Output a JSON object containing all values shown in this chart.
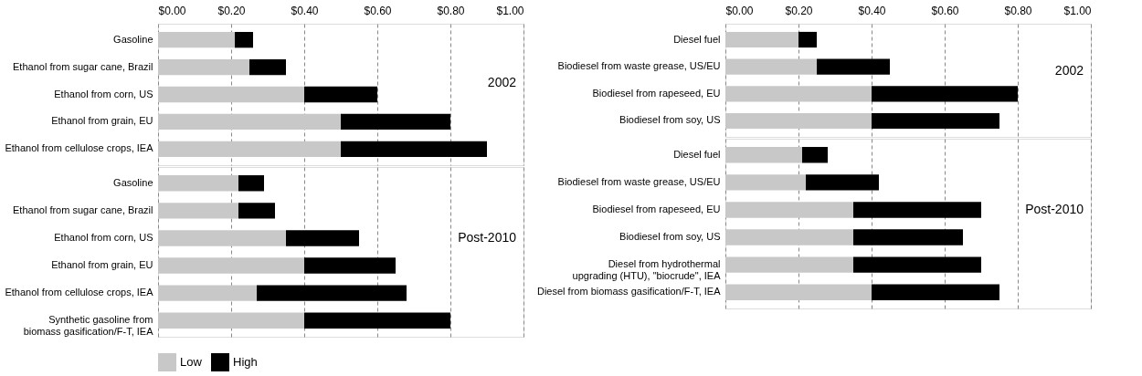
{
  "chart_data": [
    {
      "type": "bar",
      "orientation": "horizontal",
      "stacked": true,
      "grid": "x",
      "legend": false,
      "annotations": [
        "2002"
      ],
      "categories": [
        "Gasoline",
        "Ethanol from sugar cane, Brazil",
        "Ethanol from corn, US",
        "Ethanol from grain, EU",
        "Ethanol from cellulose crops, IEA"
      ],
      "xlim": [
        0,
        1
      ],
      "xticks": [
        {
          "value": 0,
          "label": "$0.00"
        },
        {
          "value": 0.2,
          "label": "$0.20"
        },
        {
          "value": 0.4,
          "label": "$0.40"
        },
        {
          "value": 0.6,
          "label": "$0.60"
        },
        {
          "value": 0.8,
          "label": "$0.80"
        },
        {
          "value": 1,
          "label": "$1.00"
        }
      ],
      "series": [
        {
          "color": "#c8c8c8",
          "values": [
            0.21,
            0.25,
            0.4,
            0.5,
            0.5
          ]
        },
        {
          "color": "#000000",
          "values": [
            0.05,
            0.1,
            0.2,
            0.3,
            0.4
          ]
        }
      ]
    },
    {
      "type": "bar",
      "orientation": "horizontal",
      "stacked": true,
      "grid": "x",
      "legend": "bottom",
      "tick_labels": "y",
      "annotations": [
        "Post-2010"
      ],
      "categories": [
        "Gasoline",
        "Ethanol from sugar cane, Brazil",
        "Ethanol from corn, US",
        "Ethanol from grain, EU",
        "Ethanol from cellulose crops, IEA",
        "Synthetic gasoline from\nbiomass gasification/F-T, IEA"
      ],
      "xlim": [
        0,
        1
      ],
      "xticks": [
        {
          "value": 0,
          "label": null
        },
        {
          "value": 0.2,
          "label": null
        },
        {
          "value": 0.4,
          "label": null
        },
        {
          "value": 0.6,
          "label": null
        },
        {
          "value": 0.8,
          "label": null
        },
        {
          "value": 1,
          "label": null
        }
      ],
      "series": [
        {
          "name": "Low",
          "color": "#c8c8c8",
          "values": [
            0.22,
            0.22,
            0.35,
            0.4,
            0.27,
            0.4
          ]
        },
        {
          "name": "High",
          "color": "#000000",
          "values": [
            0.07,
            0.1,
            0.2,
            0.25,
            0.41,
            0.4
          ]
        }
      ]
    },
    {
      "type": "bar",
      "orientation": "horizontal",
      "stacked": true,
      "grid": "x",
      "legend": false,
      "annotations": [
        "2002"
      ],
      "categories": [
        "Diesel fuel",
        "Biodiesel from waste grease, US/EU",
        "Biodiesel from rapeseed, EU",
        "Biodiesel from soy, US"
      ],
      "xlim": [
        0,
        1
      ],
      "xticks": [
        {
          "value": 0,
          "label": "$0.00"
        },
        {
          "value": 0.2,
          "label": "$0.20"
        },
        {
          "value": 0.4,
          "label": "$0.40"
        },
        {
          "value": 0.6,
          "label": "$0.60"
        },
        {
          "value": 0.8,
          "label": "$0.80"
        },
        {
          "value": 1,
          "label": "$1.00"
        }
      ],
      "series": [
        {
          "color": "#c8c8c8",
          "values": [
            0.2,
            0.25,
            0.4,
            0.4
          ]
        },
        {
          "color": "#000000",
          "values": [
            0.05,
            0.2,
            0.4,
            0.35
          ]
        }
      ]
    },
    {
      "type": "bar",
      "orientation": "horizontal",
      "stacked": true,
      "grid": "x",
      "legend": false,
      "tick_labels": "y",
      "annotations": [
        "Post-2010"
      ],
      "categories": [
        "Diesel fuel",
        "Biodiesel from waste grease, US/EU",
        "Biodiesel from rapeseed, EU",
        "Biodiesel from soy, US",
        "Diesel from hydrothermal\nupgrading (HTU), \"biocrude\", IEA",
        "Diesel from biomass gasification/F-T, IEA"
      ],
      "xlim": [
        0,
        1
      ],
      "xticks": [
        {
          "value": 0,
          "label": null
        },
        {
          "value": 0.2,
          "label": null
        },
        {
          "value": 0.4,
          "label": null
        },
        {
          "value": 0.6,
          "label": null
        },
        {
          "value": 0.8,
          "label": null
        },
        {
          "value": 1,
          "label": null
        }
      ],
      "series": [
        {
          "color": "#c8c8c8",
          "values": [
            0.21,
            0.22,
            0.35,
            0.35,
            0.35,
            0.4
          ]
        },
        {
          "color": "#000000",
          "values": [
            0.07,
            0.2,
            0.35,
            0.3,
            0.35,
            0.35
          ]
        }
      ]
    }
  ]
}
